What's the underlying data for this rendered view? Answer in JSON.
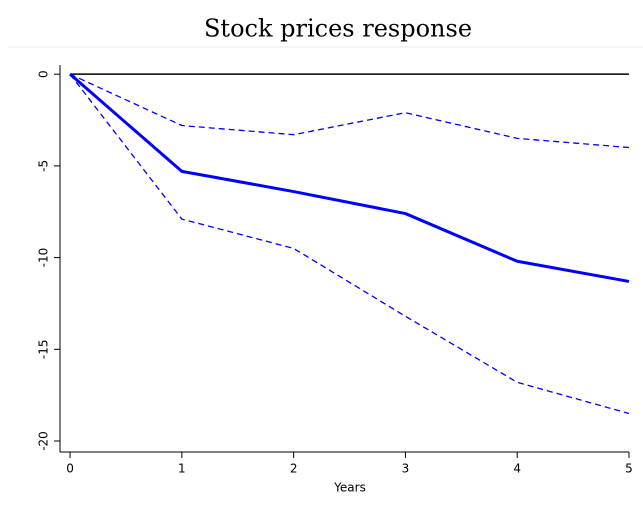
{
  "chart_data": {
    "type": "line",
    "title": "Stock prices response",
    "xlabel": "Years",
    "x": [
      0,
      1,
      2,
      3,
      4,
      5
    ],
    "series": [
      {
        "color": "#0000ff",
        "style": "solid",
        "width": 3,
        "values": [
          0,
          -5.3,
          -6.4,
          -7.6,
          -10.2,
          -11.3
        ]
      },
      {
        "color": "#0000ff",
        "style": "dashed",
        "width": 1.3,
        "values": [
          0,
          -2.8,
          -3.3,
          -2.1,
          -3.5,
          -4.0
        ]
      },
      {
        "color": "#0000ff",
        "style": "dashed",
        "width": 1.3,
        "values": [
          0,
          -7.9,
          -9.5,
          -13.2,
          -16.8,
          -18.5
        ]
      }
    ],
    "hline": 0,
    "hline_color": "#000000",
    "xlim": [
      -0.09,
      5
    ],
    "ylim": [
      -20.6,
      0.5
    ],
    "xticks": [
      0,
      1,
      2,
      3,
      4,
      5
    ],
    "yticks": [
      0,
      -5,
      -10,
      -15,
      -20
    ],
    "grid": false
  }
}
